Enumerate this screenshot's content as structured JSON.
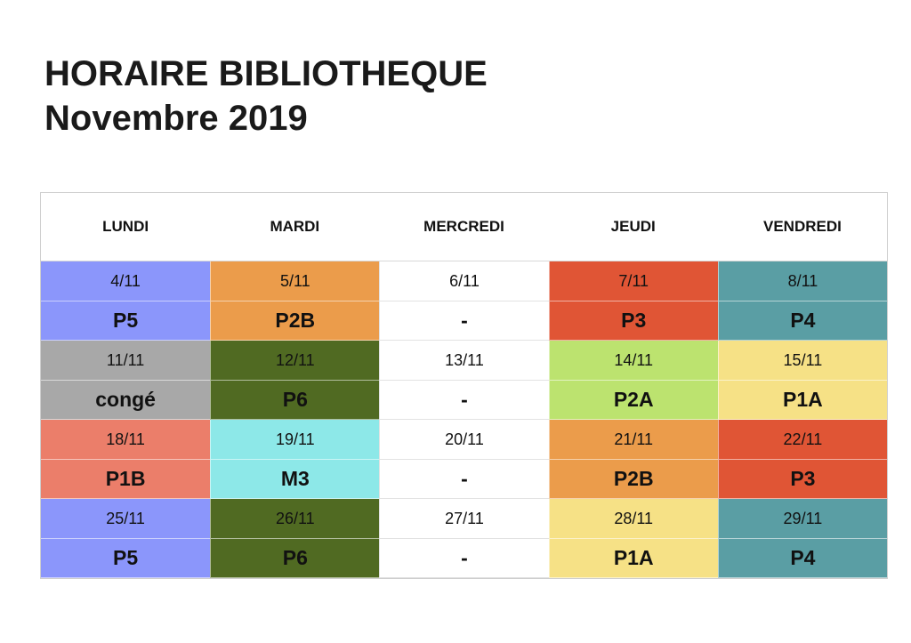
{
  "header": {
    "title_line1": "HORAIRE BIBLIOTHEQUE",
    "title_line2": "Novembre 2019"
  },
  "days": [
    "LUNDI",
    "MARDI",
    "MERCREDI",
    "JEUDI",
    "VENDREDI"
  ],
  "colors": {
    "P5": "#8b96fb",
    "P2B": "#eb9c4b",
    "white": "#ffffff",
    "P3": "#e05535",
    "P4": "#5a9ea4",
    "conge": "#a8a8a8",
    "P6": "#506a22",
    "P2A": "#bce36f",
    "P1A": "#f6e186",
    "P1B": "#eb7e6a",
    "M3": "#8de8e8"
  },
  "weeks": [
    {
      "cells": [
        {
          "date": "4/11",
          "code": "P5",
          "color": "#8b96fb"
        },
        {
          "date": "5/11",
          "code": "P2B",
          "color": "#eb9c4b"
        },
        {
          "date": "6/11",
          "code": "-",
          "color": "#ffffff"
        },
        {
          "date": "7/11",
          "code": "P3",
          "color": "#e05535"
        },
        {
          "date": "8/11",
          "code": "P4",
          "color": "#5a9ea4"
        }
      ]
    },
    {
      "cells": [
        {
          "date": "11/11",
          "code": "congé",
          "color": "#a8a8a8"
        },
        {
          "date": "12/11",
          "code": "P6",
          "color": "#506a22"
        },
        {
          "date": "13/11",
          "code": "-",
          "color": "#ffffff"
        },
        {
          "date": "14/11",
          "code": "P2A",
          "color": "#bce36f"
        },
        {
          "date": "15/11",
          "code": "P1A",
          "color": "#f6e186"
        }
      ]
    },
    {
      "cells": [
        {
          "date": "18/11",
          "code": "P1B",
          "color": "#eb7e6a"
        },
        {
          "date": "19/11",
          "code": "M3",
          "color": "#8de8e8"
        },
        {
          "date": "20/11",
          "code": "-",
          "color": "#ffffff"
        },
        {
          "date": "21/11",
          "code": "P2B",
          "color": "#eb9c4b"
        },
        {
          "date": "22/11",
          "code": "P3",
          "color": "#e05535"
        }
      ]
    },
    {
      "cells": [
        {
          "date": "25/11",
          "code": "P5",
          "color": "#8b96fb"
        },
        {
          "date": "26/11",
          "code": "P6",
          "color": "#506a22"
        },
        {
          "date": "27/11",
          "code": "-",
          "color": "#ffffff"
        },
        {
          "date": "28/11",
          "code": "P1A",
          "color": "#f6e186"
        },
        {
          "date": "29/11",
          "code": "P4",
          "color": "#5a9ea4"
        }
      ]
    }
  ]
}
